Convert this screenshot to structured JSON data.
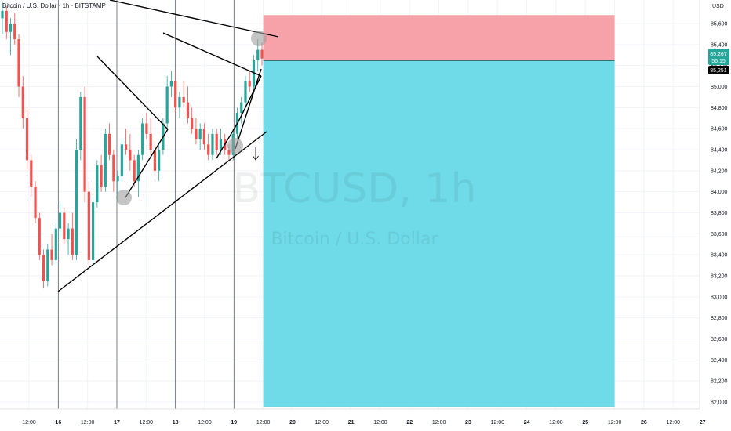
{
  "header": {
    "symbol_line": "Bitcoin / U.S. Dollar · 1h · BITSTAMP",
    "currency": "USD"
  },
  "watermark": {
    "ticker": "BTCUSD, 1h",
    "name": "Bitcoin / U.S. Dollar"
  },
  "price_labels": {
    "current": "85,267",
    "countdown": "56:15",
    "line": "85,251"
  },
  "chart_data": {
    "type": "candlestick",
    "symbol": "BTCUSD",
    "interval": "1h",
    "exchange": "BITSTAMP",
    "ylim": [
      81900,
      85700
    ],
    "y_ticks": [
      85600,
      85400,
      85200,
      85000,
      84800,
      84600,
      84400,
      84200,
      84000,
      83800,
      83600,
      83400,
      83200,
      83000,
      82800,
      82600,
      82400,
      82200,
      82000
    ],
    "x_ticks": [
      "12:00",
      "16",
      "12:00",
      "17",
      "12:00",
      "18",
      "12:00",
      "19",
      "12:00",
      "20",
      "12:00",
      "21",
      "12:00",
      "22",
      "12:00",
      "23",
      "12:00",
      "24",
      "12:00",
      "25",
      "12:00",
      "26",
      "12:00",
      "27"
    ],
    "grid": true,
    "colors": {
      "up": "#26a69a",
      "down": "#ef5350",
      "stop_zone": "#f7a1a8",
      "target_zone": "#6fdbe8",
      "marker": "#9e9e9e",
      "line": "#000000"
    },
    "ohlc_approx": [
      [
        85650,
        85800,
        85500,
        85720
      ],
      [
        85720,
        85760,
        85450,
        85520
      ],
      [
        85520,
        85650,
        85300,
        85600
      ],
      [
        85600,
        85700,
        85400,
        85450
      ],
      [
        85450,
        85500,
        84900,
        85000
      ],
      [
        85000,
        85100,
        84600,
        84700
      ],
      [
        84700,
        84800,
        84200,
        84300
      ],
      [
        84300,
        84350,
        83950,
        84050
      ],
      [
        84050,
        84100,
        83700,
        83750
      ],
      [
        83750,
        83800,
        83350,
        83400
      ],
      [
        83400,
        83450,
        83080,
        83150
      ],
      [
        83150,
        83500,
        83100,
        83450
      ],
      [
        83450,
        83600,
        83300,
        83350
      ],
      [
        83350,
        83700,
        83300,
        83650
      ],
      [
        83650,
        83900,
        83550,
        83800
      ],
      [
        83800,
        83850,
        83500,
        83550
      ],
      [
        83550,
        83700,
        83400,
        83650
      ],
      [
        83650,
        83800,
        83350,
        83400
      ],
      [
        83400,
        84500,
        83350,
        84400
      ],
      [
        84400,
        84950,
        84300,
        84900
      ],
      [
        84900,
        85000,
        83900,
        84000
      ],
      [
        84000,
        84100,
        83300,
        83350
      ],
      [
        83350,
        83950,
        83300,
        83900
      ],
      [
        83900,
        84300,
        83850,
        84250
      ],
      [
        84250,
        84350,
        84000,
        84050
      ],
      [
        84050,
        84600,
        84000,
        84550
      ],
      [
        84550,
        84650,
        84300,
        84350
      ],
      [
        84350,
        84400,
        84000,
        84100
      ],
      [
        84100,
        84200,
        83900,
        84150
      ],
      [
        84150,
        84500,
        84100,
        84450
      ],
      [
        84450,
        84600,
        84350,
        84400
      ],
      [
        84400,
        84550,
        84200,
        84300
      ],
      [
        84300,
        84350,
        84050,
        84100
      ],
      [
        84100,
        84400,
        83950,
        84350
      ],
      [
        84350,
        84700,
        84300,
        84650
      ],
      [
        84650,
        84750,
        84500,
        84550
      ],
      [
        84550,
        84700,
        84350,
        84400
      ],
      [
        84400,
        84500,
        84150,
        84200
      ],
      [
        84200,
        84450,
        84100,
        84400
      ],
      [
        84400,
        84700,
        84350,
        84650
      ],
      [
        84650,
        85100,
        84600,
        85000
      ],
      [
        85000,
        85150,
        84900,
        85050
      ],
      [
        85050,
        85150,
        84750,
        84800
      ],
      [
        84800,
        84950,
        84700,
        84900
      ],
      [
        84900,
        85050,
        84800,
        84850
      ],
      [
        84850,
        85000,
        84650,
        84700
      ],
      [
        84700,
        84800,
        84550,
        84600
      ],
      [
        84600,
        84700,
        84450,
        84500
      ],
      [
        84500,
        84650,
        84400,
        84600
      ],
      [
        84600,
        84650,
        84400,
        84450
      ],
      [
        84450,
        84550,
        84300,
        84350
      ],
      [
        84350,
        84600,
        84300,
        84550
      ],
      [
        84550,
        84600,
        84350,
        84400
      ],
      [
        84400,
        84600,
        84350,
        84500
      ],
      [
        84500,
        84550,
        84350,
        84400
      ],
      [
        84400,
        84450,
        84300,
        84350
      ],
      [
        84350,
        84600,
        84300,
        84550
      ],
      [
        84550,
        84800,
        84500,
        84750
      ],
      [
        84750,
        84900,
        84650,
        84850
      ],
      [
        84850,
        85100,
        84800,
        85050
      ],
      [
        85050,
        85150,
        84950,
        85000
      ],
      [
        85000,
        85300,
        84950,
        85250
      ],
      [
        85250,
        85450,
        85150,
        85350
      ],
      [
        85350,
        85420,
        85200,
        85267
      ]
    ],
    "position": {
      "direction": "short",
      "entry": 85251,
      "stop_top": 85680,
      "target": 81950,
      "start_time": "19 12:00",
      "end_time": "25 12:00"
    },
    "drawings": [
      {
        "type": "trend_line",
        "from": [
          84380,
          15.1
        ],
        "to": [
          84490,
          25.6
        ]
      },
      {
        "type": "trend_line",
        "from": [
          83060,
          16.0
        ],
        "to": [
          84530,
          19.5
        ]
      },
      {
        "type": "trend_line",
        "from": [
          85710,
          15.7
        ],
        "to": [
          85420,
          19.6
        ]
      }
    ],
    "markers": [
      {
        "price": 84000,
        "time": "17 03:00"
      },
      {
        "price": 84430,
        "time": "19 08:00"
      },
      {
        "price": 85440,
        "time": "19 12:00"
      }
    ]
  }
}
